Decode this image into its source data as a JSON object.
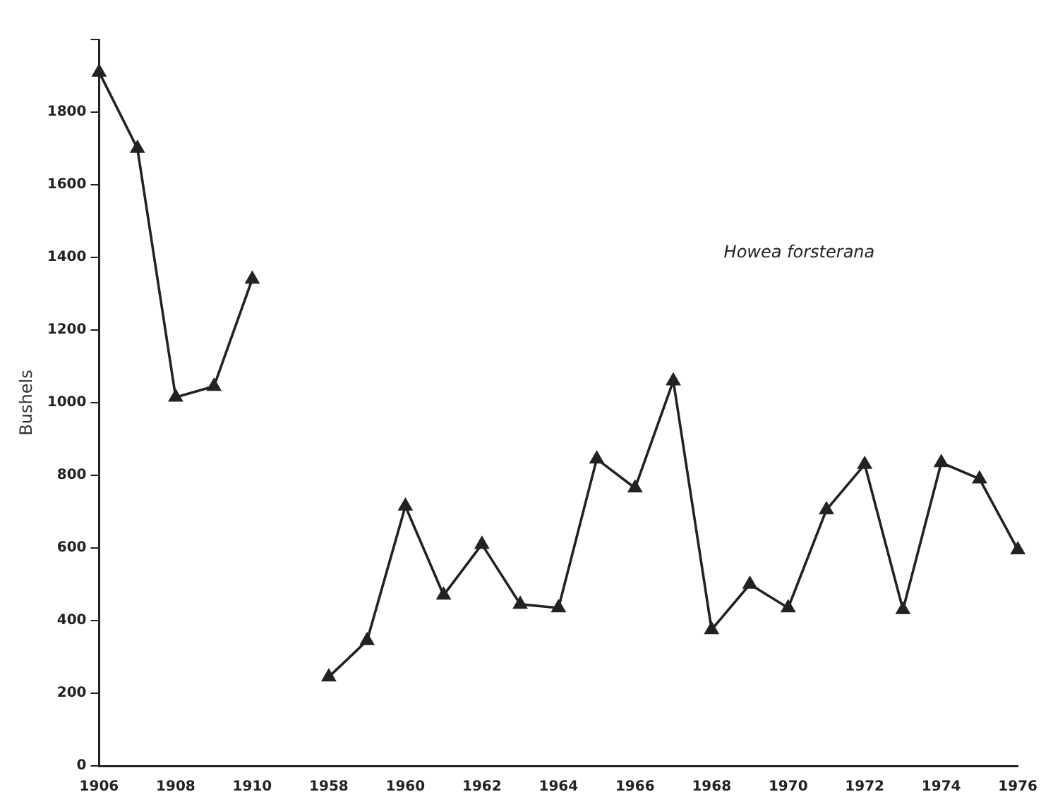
{
  "chart_data": {
    "type": "line",
    "ylabel": "Bushels",
    "annotations": [
      "Howea forsterana"
    ],
    "categories": [
      "1906",
      null,
      "1908",
      null,
      "1910",
      null,
      "1958",
      null,
      "1960",
      null,
      "1962",
      null,
      "1964",
      null,
      "1966",
      null,
      "1968",
      null,
      "1970",
      null,
      "1972",
      null,
      "1974",
      null,
      "1976"
    ],
    "series": [
      {
        "color": "#222222",
        "values": [
          1910,
          1700,
          1015,
          1045,
          1340,
          null,
          245,
          345,
          715,
          470,
          610,
          445,
          435,
          845,
          765,
          1060,
          375,
          500,
          435,
          705,
          830,
          430,
          835,
          790,
          595
        ]
      }
    ],
    "ylim": [
      0,
      2000
    ],
    "yticks": [
      0,
      200,
      400,
      600,
      800,
      1000,
      1200,
      1400,
      1600,
      1800,
      {
        "value": 2000,
        "label": null
      }
    ],
    "grid": false,
    "legend": false,
    "marker": "triangle",
    "line_style": "solid"
  }
}
